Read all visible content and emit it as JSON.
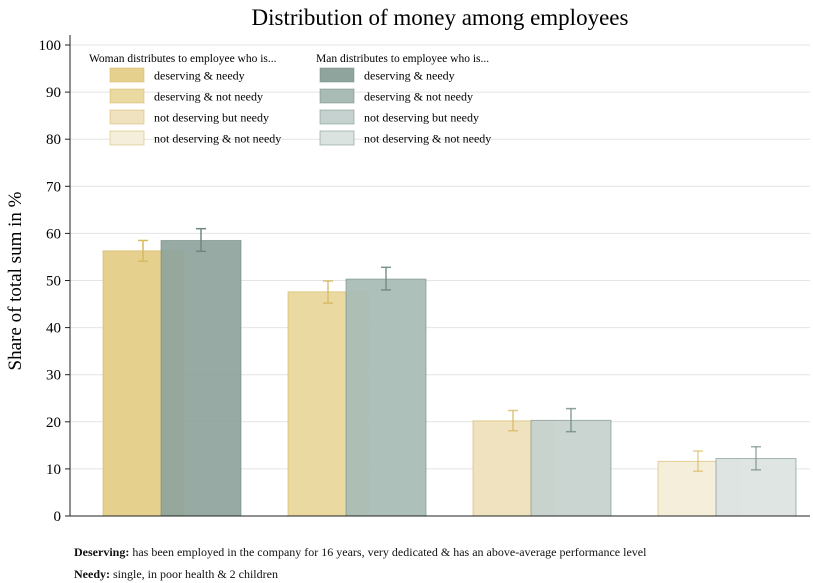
{
  "chart_data": {
    "type": "bar",
    "title": "Distribution of money among employees",
    "ylabel": "Share of total sum in %",
    "xlabel": "",
    "ylim": [
      0,
      100
    ],
    "yticks": [
      0,
      10,
      20,
      30,
      40,
      50,
      60,
      70,
      80,
      90,
      100
    ],
    "grid": true,
    "categories": [
      "deserving & needy",
      "deserving & not needy",
      "not deserving but needy",
      "not deserving & not needy"
    ],
    "series": [
      {
        "name": "Woman distributes to employee who is...",
        "values": [
          56.3,
          47.6,
          20.2,
          11.6
        ],
        "err_low": [
          54.1,
          45.2,
          18.1,
          9.5
        ],
        "err_high": [
          58.5,
          49.9,
          22.4,
          13.8
        ]
      },
      {
        "name": "Man distributes to employee who is...",
        "values": [
          58.5,
          50.3,
          20.3,
          12.2
        ],
        "err_low": [
          56.2,
          48.0,
          17.9,
          9.8
        ],
        "err_high": [
          61.0,
          52.8,
          22.8,
          14.7
        ]
      }
    ],
    "colors": {
      "woman": [
        "#e6d08e",
        "#ebd9a2",
        "#f0e2be",
        "#f5eedb"
      ],
      "man": [
        "#8fa49d",
        "#a8bbb5",
        "#c6d2cf",
        "#dbe3e1"
      ],
      "woman_edge": "#d2b45e",
      "man_edge": "#6f8880",
      "woman_err": "#d6b960",
      "man_err": "#6f8880"
    },
    "legend": {
      "position": "top-left",
      "woman_header": "Woman distributes to employee who is...",
      "man_header": "Man distributes to employee who is...",
      "labels": [
        "deserving & needy",
        "deserving & not needy",
        "not deserving but needy",
        "not deserving & not needy"
      ]
    }
  },
  "notes": {
    "deserving_label": "Deserving:",
    "deserving_text": "has been employed in the company for 16 years, very dedicated & has an above-average performance level",
    "needy_label": "Needy:",
    "needy_text": "single, in poor health & 2 children"
  }
}
